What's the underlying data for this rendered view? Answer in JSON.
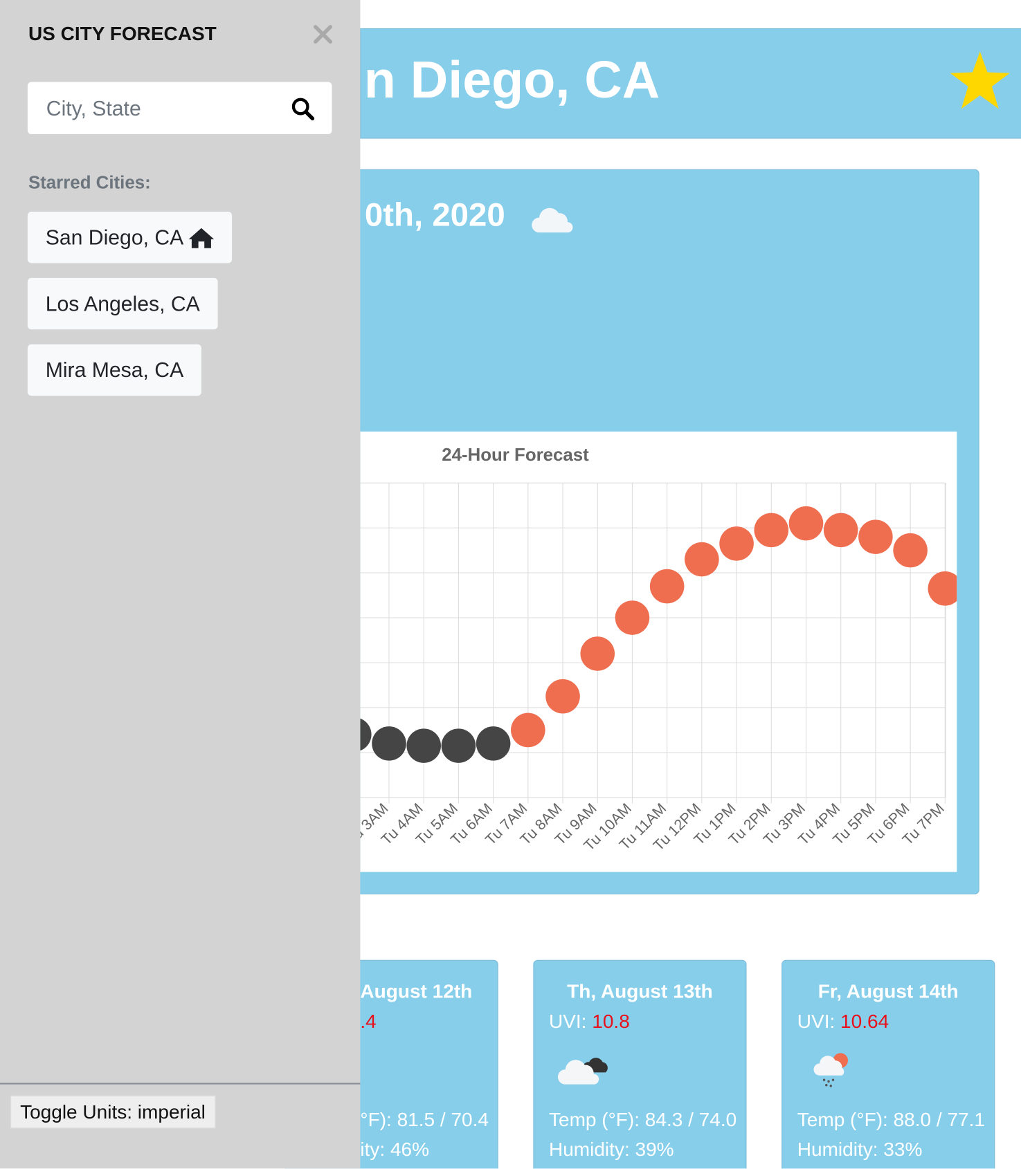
{
  "sidebar": {
    "title": "US CITY FORECAST",
    "search_placeholder": "City, State",
    "starred_label": "Starred Cities:",
    "starred_cities": [
      "San Diego, CA",
      "Los Angeles, CA",
      "Mira Mesa, CA"
    ],
    "toggle_units": "Toggle Units: imperial"
  },
  "header": {
    "title": "n Diego, CA"
  },
  "today": {
    "date": "0th, 2020"
  },
  "forecast_chart": {
    "type": "scatter",
    "title": "24-Hour Forecast",
    "categories": [
      null,
      "u 3AM",
      "Tu 4AM",
      "Tu 5AM",
      "Tu 6AM",
      "Tu 7AM",
      "Tu 8AM",
      "Tu 9AM",
      "Tu 10AM",
      "Tu 11AM",
      "Tu 12PM",
      "Tu 1PM",
      "Tu 2PM",
      "Tu 3PM",
      "Tu 4PM",
      "Tu 5PM",
      "Tu 6PM",
      "Tu 7PM"
    ],
    "values": [
      68.8,
      68.4,
      68.3,
      68.3,
      68.4,
      69.0,
      70.5,
      72.4,
      74.0,
      75.4,
      76.6,
      77.3,
      77.9,
      78.2,
      77.9,
      77.6,
      77.0,
      75.3
    ],
    "colors": [
      "#454545",
      "#454545",
      "#454545",
      "#454545",
      "#454545",
      "#ee6e4f",
      "#ee6e4f",
      "#ee6e4f",
      "#ee6e4f",
      "#ee6e4f",
      "#ee6e4f",
      "#ee6e4f",
      "#ee6e4f",
      "#ee6e4f",
      "#ee6e4f",
      "#ee6e4f",
      "#ee6e4f",
      "#ee6e4f"
    ],
    "ylim": [
      66,
      80
    ],
    "grid": true
  },
  "daily": [
    {
      "date": "August 12th",
      "uvi": ".4",
      "temp": "°F): 81.5 / 70.4",
      "humidity": "ity: 46%"
    },
    {
      "date": "Th, August 13th",
      "uvi_label": "UVI:",
      "uvi": "10.8",
      "temp": "Temp (°F): 84.3 / 74.0",
      "humidity": "Humidity: 39%"
    },
    {
      "date": "Fr, August 14th",
      "uvi_label": "UVI:",
      "uvi": "10.64",
      "temp": "Temp (°F): 88.0 / 77.1",
      "humidity": "Humidity: 33%"
    }
  ]
}
